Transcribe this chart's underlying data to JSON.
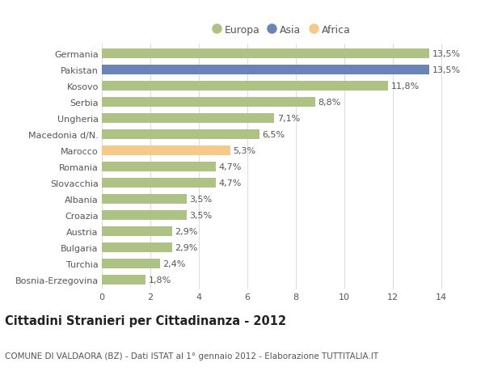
{
  "categories": [
    "Germania",
    "Pakistan",
    "Kosovo",
    "Serbia",
    "Ungheria",
    "Macedonia d/N.",
    "Marocco",
    "Romania",
    "Slovacchia",
    "Albania",
    "Croazia",
    "Austria",
    "Bulgaria",
    "Turchia",
    "Bosnia-Erzegovina"
  ],
  "values": [
    13.5,
    13.5,
    11.8,
    8.8,
    7.1,
    6.5,
    5.3,
    4.7,
    4.7,
    3.5,
    3.5,
    2.9,
    2.9,
    2.4,
    1.8
  ],
  "labels": [
    "13,5%",
    "13,5%",
    "11,8%",
    "8,8%",
    "7,1%",
    "6,5%",
    "5,3%",
    "4,7%",
    "4,7%",
    "3,5%",
    "3,5%",
    "2,9%",
    "2,9%",
    "2,4%",
    "1,8%"
  ],
  "colors": [
    "#aec285",
    "#6b84b8",
    "#aec285",
    "#aec285",
    "#aec285",
    "#aec285",
    "#f5c98a",
    "#aec285",
    "#aec285",
    "#aec285",
    "#aec285",
    "#aec285",
    "#aec285",
    "#aec285",
    "#aec285"
  ],
  "legend_labels": [
    "Europa",
    "Asia",
    "Africa"
  ],
  "legend_colors": [
    "#aec285",
    "#6b84b8",
    "#f5c98a"
  ],
  "title": "Cittadini Stranieri per Cittadinanza - 2012",
  "subtitle": "COMUNE DI VALDAORA (BZ) - Dati ISTAT al 1° gennaio 2012 - Elaborazione TUTTITALIA.IT",
  "xlim": [
    0,
    14.8
  ],
  "xticks": [
    0,
    2,
    4,
    6,
    8,
    10,
    12,
    14
  ],
  "bar_background": "#ffffff",
  "grid_color": "#dddddd",
  "text_color": "#555555",
  "label_fontsize": 8,
  "tick_fontsize": 8,
  "ylabel_fontsize": 8,
  "title_fontsize": 10.5,
  "subtitle_fontsize": 7.5,
  "bar_height": 0.6
}
